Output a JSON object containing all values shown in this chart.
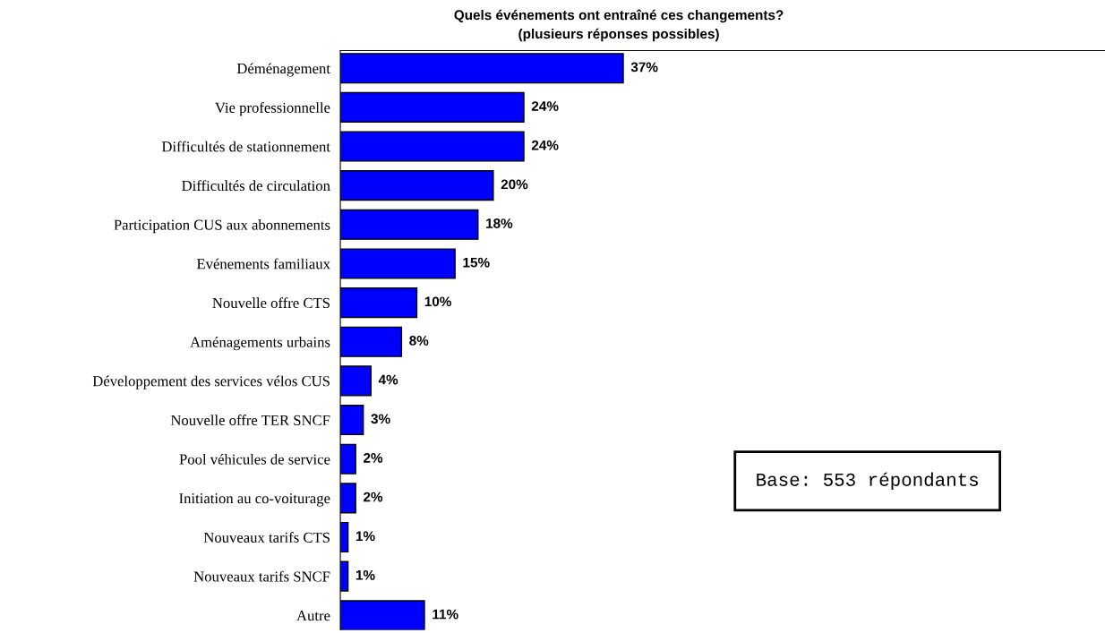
{
  "chart_data": {
    "type": "bar",
    "orientation": "horizontal",
    "title": "Quels événements ont entraîné ces changements?",
    "subtitle": "(plusieurs réponses possibles)",
    "categories": [
      "Déménagement",
      "Vie professionnelle",
      "Difficultés de stationnement",
      "Difficultés de circulation",
      "Participation CUS aux abonnements",
      "Evénements familiaux",
      "Nouvelle offre CTS",
      "Aménagements urbains",
      "Développement des services vélos CUS",
      "Nouvelle offre TER SNCF",
      "Pool véhicules de service",
      "Initiation au co-voiturage",
      "Nouveaux tarifs CTS",
      "Nouveaux tarifs SNCF",
      "Autre"
    ],
    "values": [
      37,
      24,
      24,
      20,
      18,
      15,
      10,
      8,
      4,
      3,
      2,
      2,
      1,
      1,
      11
    ],
    "value_labels": [
      "37%",
      "24%",
      "24%",
      "20%",
      "18%",
      "15%",
      "10%",
      "8%",
      "4%",
      "3%",
      "2%",
      "2%",
      "1%",
      "1%",
      "11%"
    ],
    "color": "#0000ff",
    "xlim": [
      0,
      100
    ],
    "tick_labels": "y",
    "grid": false,
    "legend": false,
    "annotations": [
      "Base: 553 répondants"
    ]
  }
}
